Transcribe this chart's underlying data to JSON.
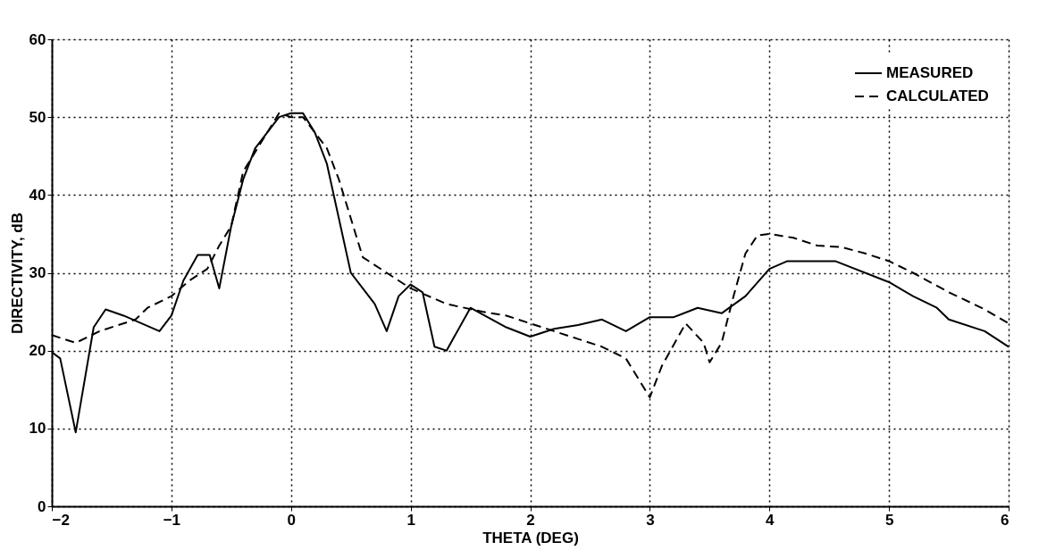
{
  "chart_data": {
    "type": "line",
    "xlabel": "THETA (DEG)",
    "ylabel": "DIRECTIVITY, dB",
    "xlim": [
      -2,
      6
    ],
    "ylim": [
      0,
      60
    ],
    "xticks": [
      -2,
      -1,
      0,
      1,
      2,
      3,
      4,
      5,
      6
    ],
    "yticks": [
      0,
      10,
      20,
      30,
      40,
      50,
      60
    ],
    "grid": true,
    "legend": "top right",
    "marker": "none",
    "series": [
      {
        "name": "MEASURED",
        "color": "#000000",
        "line_style": "solid",
        "x": [
          -2,
          -1.93,
          -1.8,
          -1.65,
          -1.55,
          -1.4,
          -1.1,
          -1,
          -0.9,
          -0.78,
          -0.68,
          -0.6,
          -0.5,
          -0.4,
          -0.3,
          -0.1,
          0,
          0.1,
          0.2,
          0.3,
          0.4,
          0.5,
          0.6,
          0.7,
          0.8,
          0.9,
          1,
          1.1,
          1.2,
          1.3,
          1.5,
          1.8,
          2,
          2.2,
          2.4,
          2.6,
          2.8,
          3,
          3.2,
          3.4,
          3.6,
          3.8,
          4,
          4.15,
          4.55,
          5,
          5.2,
          5.4,
          5.5,
          5.8,
          6
        ],
        "values": [
          19.8,
          19,
          9.5,
          23,
          25.3,
          24.5,
          22.5,
          24.5,
          29,
          32.3,
          32.3,
          28,
          36,
          42,
          46,
          50,
          50.5,
          50.5,
          48,
          44,
          37,
          30,
          28,
          26,
          22.5,
          27,
          28.5,
          27.5,
          20.5,
          20,
          25.5,
          23,
          21.8,
          22.8,
          23.3,
          24,
          22.5,
          24.3,
          24.3,
          25.5,
          24.8,
          27,
          30.5,
          31.5,
          31.5,
          28.8,
          27,
          25.5,
          24,
          22.5,
          20.5
        ]
      },
      {
        "name": "CALCULATED",
        "color": "#000000",
        "line_style": "dashed",
        "x": [
          -2,
          -1.8,
          -1.6,
          -1.3,
          -1.2,
          -1,
          -0.85,
          -0.7,
          -0.6,
          -0.5,
          -0.4,
          -0.2,
          -0.1,
          0,
          0.1,
          0.3,
          0.4,
          0.5,
          0.6,
          0.8,
          1,
          1.3,
          1.6,
          1.8,
          2,
          2.2,
          2.4,
          2.6,
          2.8,
          3,
          3.1,
          3.3,
          3.45,
          3.5,
          3.6,
          3.7,
          3.8,
          3.9,
          4,
          4.2,
          4.4,
          4.6,
          4.8,
          5,
          5.2,
          5.5,
          5.8,
          6
        ],
        "values": [
          22,
          21,
          22.5,
          24,
          25.5,
          27,
          29,
          30.5,
          33.5,
          36,
          43,
          48,
          50.5,
          50,
          50,
          46,
          42,
          37,
          32,
          30,
          28,
          26,
          25,
          24.5,
          23.5,
          22.5,
          21.5,
          20.5,
          19,
          14,
          18,
          23.5,
          21,
          18.5,
          21,
          27,
          32.5,
          34.8,
          35,
          34.5,
          33.5,
          33.3,
          32.5,
          31.5,
          30,
          27.5,
          25.3,
          23.5
        ]
      }
    ]
  }
}
